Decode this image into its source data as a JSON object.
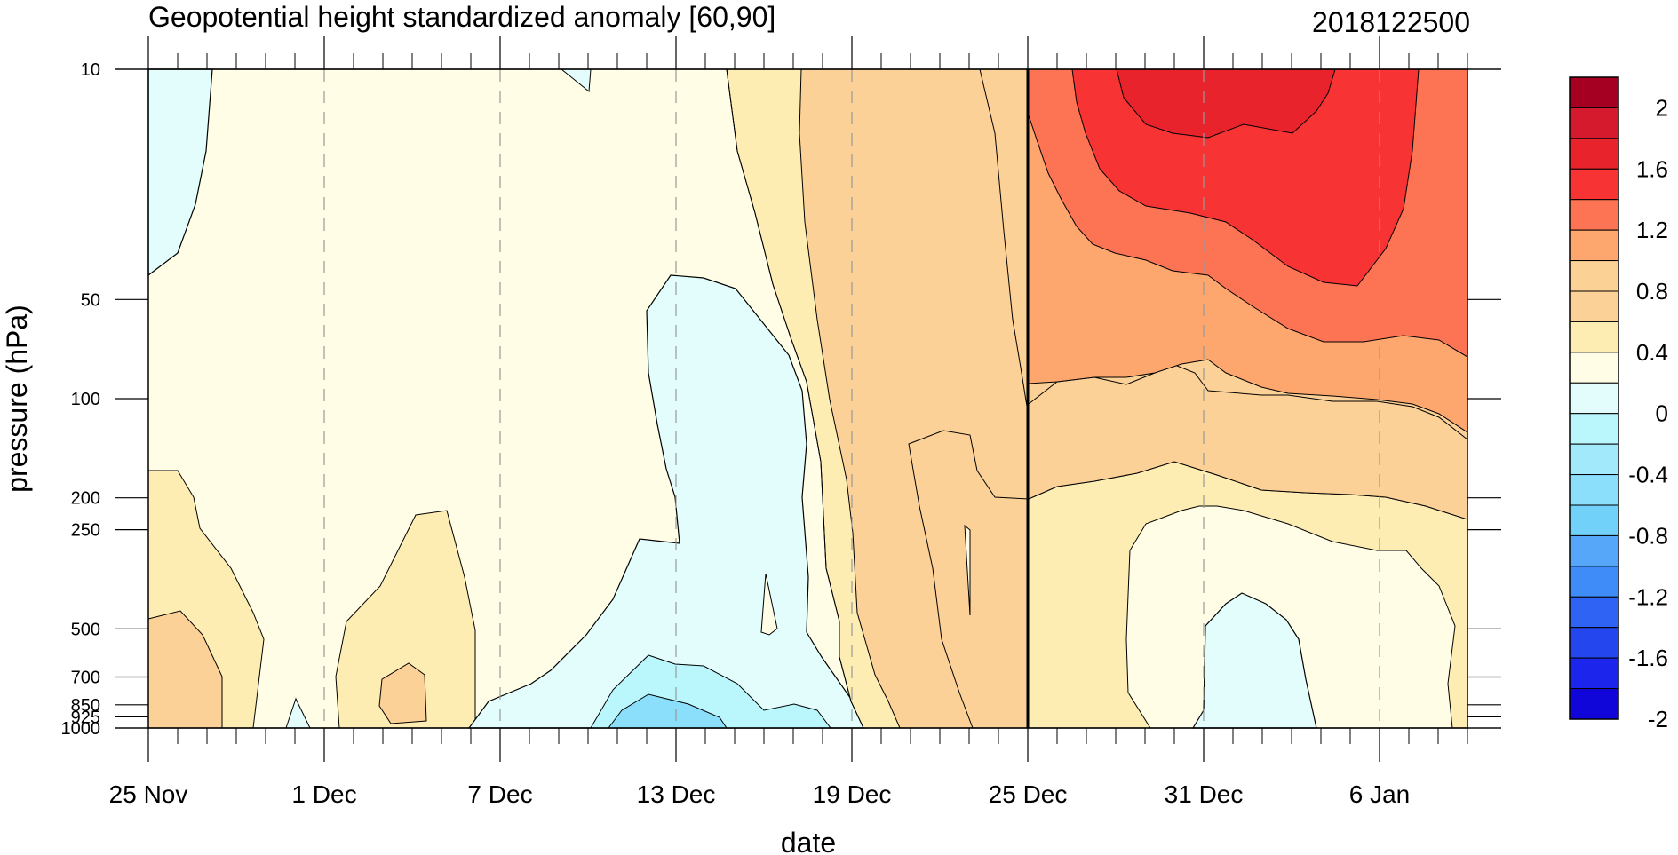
{
  "chart_data": {
    "type": "contour",
    "title": "Geopotential height standardized anomaly [60,90]",
    "date_stamp": "2018122500",
    "xlabel": "date",
    "ylabel": "pressure (hPa)",
    "x_ticks": [
      {
        "label": "25 Nov",
        "day": 0
      },
      {
        "label": "1 Dec",
        "day": 6
      },
      {
        "label": "7 Dec",
        "day": 12
      },
      {
        "label": "13 Dec",
        "day": 18
      },
      {
        "label": "19 Dec",
        "day": 24
      },
      {
        "label": "25 Dec",
        "day": 30
      },
      {
        "label": "31 Dec",
        "day": 36
      },
      {
        "label": "6 Jan",
        "day": 42
      }
    ],
    "x_range_days": [
      0,
      45
    ],
    "y_scale": "log",
    "y_range_hpa": [
      1000,
      10
    ],
    "y_ticks": [
      {
        "label": "10",
        "value": 10
      },
      {
        "label": "50",
        "value": 50
      },
      {
        "label": "100",
        "value": 100
      },
      {
        "label": "200",
        "value": 200
      },
      {
        "label": "250",
        "value": 250
      },
      {
        "label": "500",
        "value": 500
      },
      {
        "label": "700",
        "value": 700
      },
      {
        "label": "850",
        "value": 850
      },
      {
        "label": "925",
        "value": 925
      },
      {
        "label": "1000",
        "value": 1000
      }
    ],
    "current_date_marker": {
      "label": "25 Dec",
      "day": 30
    },
    "colorbar": {
      "levels": [
        {
          "label": "2",
          "value": 2.0
        },
        {
          "label": "1.6",
          "value": 1.6
        },
        {
          "label": "1.2",
          "value": 1.2
        },
        {
          "label": "0.8",
          "value": 0.8
        },
        {
          "label": "0.4",
          "value": 0.4
        },
        {
          "label": "0",
          "value": 0.0
        },
        {
          "label": "-0.4",
          "value": -0.4
        },
        {
          "label": "-0.8",
          "value": -0.8
        },
        {
          "label": "-1.2",
          "value": -1.2
        },
        {
          "label": "-1.6",
          "value": -1.6
        },
        {
          "label": "-2",
          "value": -2.0
        }
      ],
      "colors_top_to_bottom": [
        "#a50021",
        "#d61a2d",
        "#e8232b",
        "#f73334",
        "#fd7454",
        "#fda66d",
        "#fcd196",
        "#fcd197",
        "#feedb3",
        "#fffde6",
        "#e3fdfd",
        "#baf7fd",
        "#a2e9fb",
        "#8bdffa",
        "#72d1f9",
        "#56a7fa",
        "#3f8cf9",
        "#2e63f4",
        "#2346ee",
        "#1b25ec",
        "#1106d9"
      ]
    },
    "regions": [
      {
        "name": "background",
        "color": "#fffde6",
        "anomaly_range": "0 to 0.2"
      },
      {
        "name": "upper-left-negative",
        "color": "#e3fdfd",
        "anomaly_range": "-0.2 to 0"
      },
      {
        "name": "mid-dec-negative",
        "color": "#e3fdfd",
        "anomaly_range": "-0.2 to 0"
      },
      {
        "name": "mid-dec-lower-negative",
        "color": "#baf7fd",
        "anomaly_range": "-0.4 to -0.2"
      },
      {
        "name": "mid-dec-core-negative",
        "color": "#8bdffa",
        "anomaly_range": "-0.6 to -0.4"
      },
      {
        "name": "early-jan-negative",
        "color": "#e3fdfd",
        "anomaly_range": "-0.2 to 0"
      },
      {
        "name": "late-dec-warm-0.2",
        "color": "#feedb3",
        "anomaly_range": "0.2 to 0.4"
      },
      {
        "name": "late-dec-warm-0.4",
        "color": "#fcd197",
        "anomaly_range": "0.4 to 0.8"
      },
      {
        "name": "strat-warm-0.8",
        "color": "#fda66d",
        "anomaly_range": "0.8 to 1.0"
      },
      {
        "name": "strat-warm-1.0",
        "color": "#fd7454",
        "anomaly_range": "1.0 to 1.4"
      },
      {
        "name": "strat-warm-1.4",
        "color": "#f73334",
        "anomaly_range": "1.4 to 1.6"
      },
      {
        "name": "strat-warm-1.6",
        "color": "#e8232b",
        "anomaly_range": "1.6 to 1.8"
      }
    ]
  }
}
